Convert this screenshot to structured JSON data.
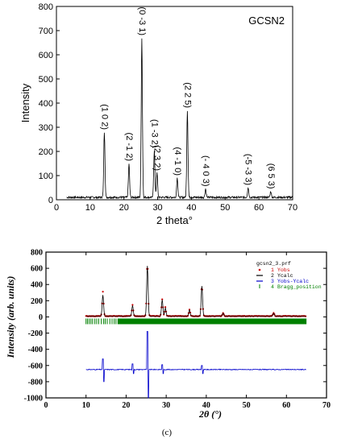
{
  "chart_data": [
    {
      "type": "line",
      "title": "GCSN2",
      "xlabel": "2 theta°",
      "ylabel": "Intensity",
      "xlim": [
        0,
        70
      ],
      "ylim": [
        0,
        800
      ],
      "x_ticks": [
        "0",
        "10",
        "20",
        "30",
        "40",
        "50",
        "60",
        "70"
      ],
      "y_ticks": [
        "0",
        "100",
        "200",
        "300",
        "400",
        "500",
        "600",
        "700",
        "800"
      ],
      "baseline": 10,
      "peaks": [
        {
          "x": 14.2,
          "y": 270,
          "label": "(1 0 2)"
        },
        {
          "x": 21.5,
          "y": 140,
          "label": "(2 -1 2)"
        },
        {
          "x": 25.3,
          "y": 660,
          "label": "(0 -3 1)"
        },
        {
          "x": 29.0,
          "y": 195,
          "label": "(1 -3 2)"
        },
        {
          "x": 29.8,
          "y": 100,
          "label": "(2 3 2)"
        },
        {
          "x": 35.8,
          "y": 80,
          "label": "(4 -1 0)"
        },
        {
          "x": 38.8,
          "y": 360,
          "label": "(2 2 5)"
        },
        {
          "x": 44.2,
          "y": 35,
          "label": "(- 4 0 3)"
        },
        {
          "x": 56.8,
          "y": 40,
          "label": "(-5 -3 3)"
        },
        {
          "x": 63.5,
          "y": 25,
          "label": "(6 5 3)"
        }
      ]
    },
    {
      "type": "line",
      "xlabel": "2θ (°)",
      "ylabel": "Intensity (arb. units)",
      "xlim": [
        0,
        70
      ],
      "ylim": [
        -1000,
        800
      ],
      "x_ticks": [
        "0",
        "10",
        "20",
        "30",
        "40",
        "50",
        "60",
        "70"
      ],
      "y_ticks": [
        "800",
        "600",
        "400",
        "200",
        "0",
        "-200",
        "-400",
        "-600",
        "-800",
        "-1000"
      ],
      "x_range": [
        10,
        65
      ],
      "legend": {
        "file": "gcsn2_3.prf",
        "entries": [
          {
            "num": "1",
            "name": "Yobs",
            "color": "#cc0000"
          },
          {
            "num": "2",
            "name": "Ycalc",
            "color": "#000000"
          },
          {
            "num": "3",
            "name": "Yobs-Ycalc",
            "color": "#0000cc"
          },
          {
            "num": "4",
            "name": "Bragg_position",
            "color": "#008000"
          }
        ]
      },
      "series": [
        {
          "name": "Yobs",
          "color": "#cc0000",
          "baseline": 10,
          "peaks": [
            {
              "x": 14.2,
              "y": 300
            },
            {
              "x": 21.6,
              "y": 140
            },
            {
              "x": 25.3,
              "y": 690
            },
            {
              "x": 29.0,
              "y": 210
            },
            {
              "x": 29.8,
              "y": 110
            },
            {
              "x": 35.8,
              "y": 80
            },
            {
              "x": 38.9,
              "y": 390
            },
            {
              "x": 44.2,
              "y": 40
            },
            {
              "x": 56.8,
              "y": 40
            }
          ]
        },
        {
          "name": "Ycalc",
          "color": "#000000",
          "baseline": 10,
          "peaks": [
            {
              "x": 14.2,
              "y": 260
            },
            {
              "x": 21.6,
              "y": 130
            },
            {
              "x": 25.3,
              "y": 620
            },
            {
              "x": 29.0,
              "y": 200
            },
            {
              "x": 29.8,
              "y": 100
            },
            {
              "x": 35.8,
              "y": 75
            },
            {
              "x": 38.9,
              "y": 370
            },
            {
              "x": 44.2,
              "y": 35
            },
            {
              "x": 56.8,
              "y": 35
            }
          ]
        },
        {
          "name": "Yobs-Ycalc",
          "color": "#0000cc",
          "baseline": -650,
          "spikes": [
            {
              "x": 14.2,
              "up": -520,
              "down": -800
            },
            {
              "x": 21.6,
              "up": -580,
              "down": -700
            },
            {
              "x": 25.3,
              "up": -180,
              "down": -1000
            },
            {
              "x": 29.0,
              "up": -590,
              "down": -700
            },
            {
              "x": 38.9,
              "up": -600,
              "down": -700
            }
          ]
        },
        {
          "name": "Bragg_position",
          "color": "#008000",
          "y": -60
        }
      ]
    }
  ],
  "caption": "(c)"
}
